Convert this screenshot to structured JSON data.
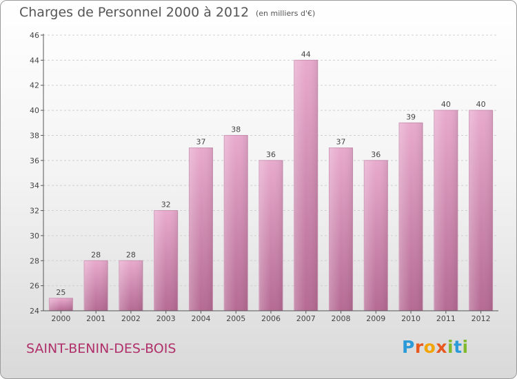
{
  "title": "Charges de Personnel 2000 à 2012",
  "subtitle": "(en milliers d'€)",
  "commune": "SAINT-BENIN-DES-BOIS",
  "brand": {
    "letters": [
      "P",
      "r",
      "o",
      "x",
      "i",
      "t",
      "i"
    ],
    "colors": [
      "#2a9bd8",
      "#e8591f",
      "#f2a400",
      "#e8591f",
      "#80b92b",
      "#2a9bd8",
      "#80b92b"
    ]
  },
  "colors": {
    "bar": "#d986b4",
    "grid": "#cfcfcf",
    "axis": "#555555"
  },
  "chart_data": {
    "type": "bar",
    "categories": [
      "2000",
      "2001",
      "2002",
      "2003",
      "2004",
      "2005",
      "2006",
      "2007",
      "2008",
      "2009",
      "2010",
      "2011",
      "2012"
    ],
    "values": [
      25,
      28,
      28,
      32,
      37,
      38,
      36,
      44,
      37,
      36,
      39,
      40,
      40
    ],
    "title": "Charges de Personnel 2000 à 2012",
    "xlabel": "",
    "ylabel": "",
    "ylim": [
      24,
      46
    ],
    "yticks": [
      24,
      26,
      28,
      30,
      32,
      34,
      36,
      38,
      40,
      42,
      44,
      46
    ],
    "grid": true,
    "data_labels": true
  }
}
